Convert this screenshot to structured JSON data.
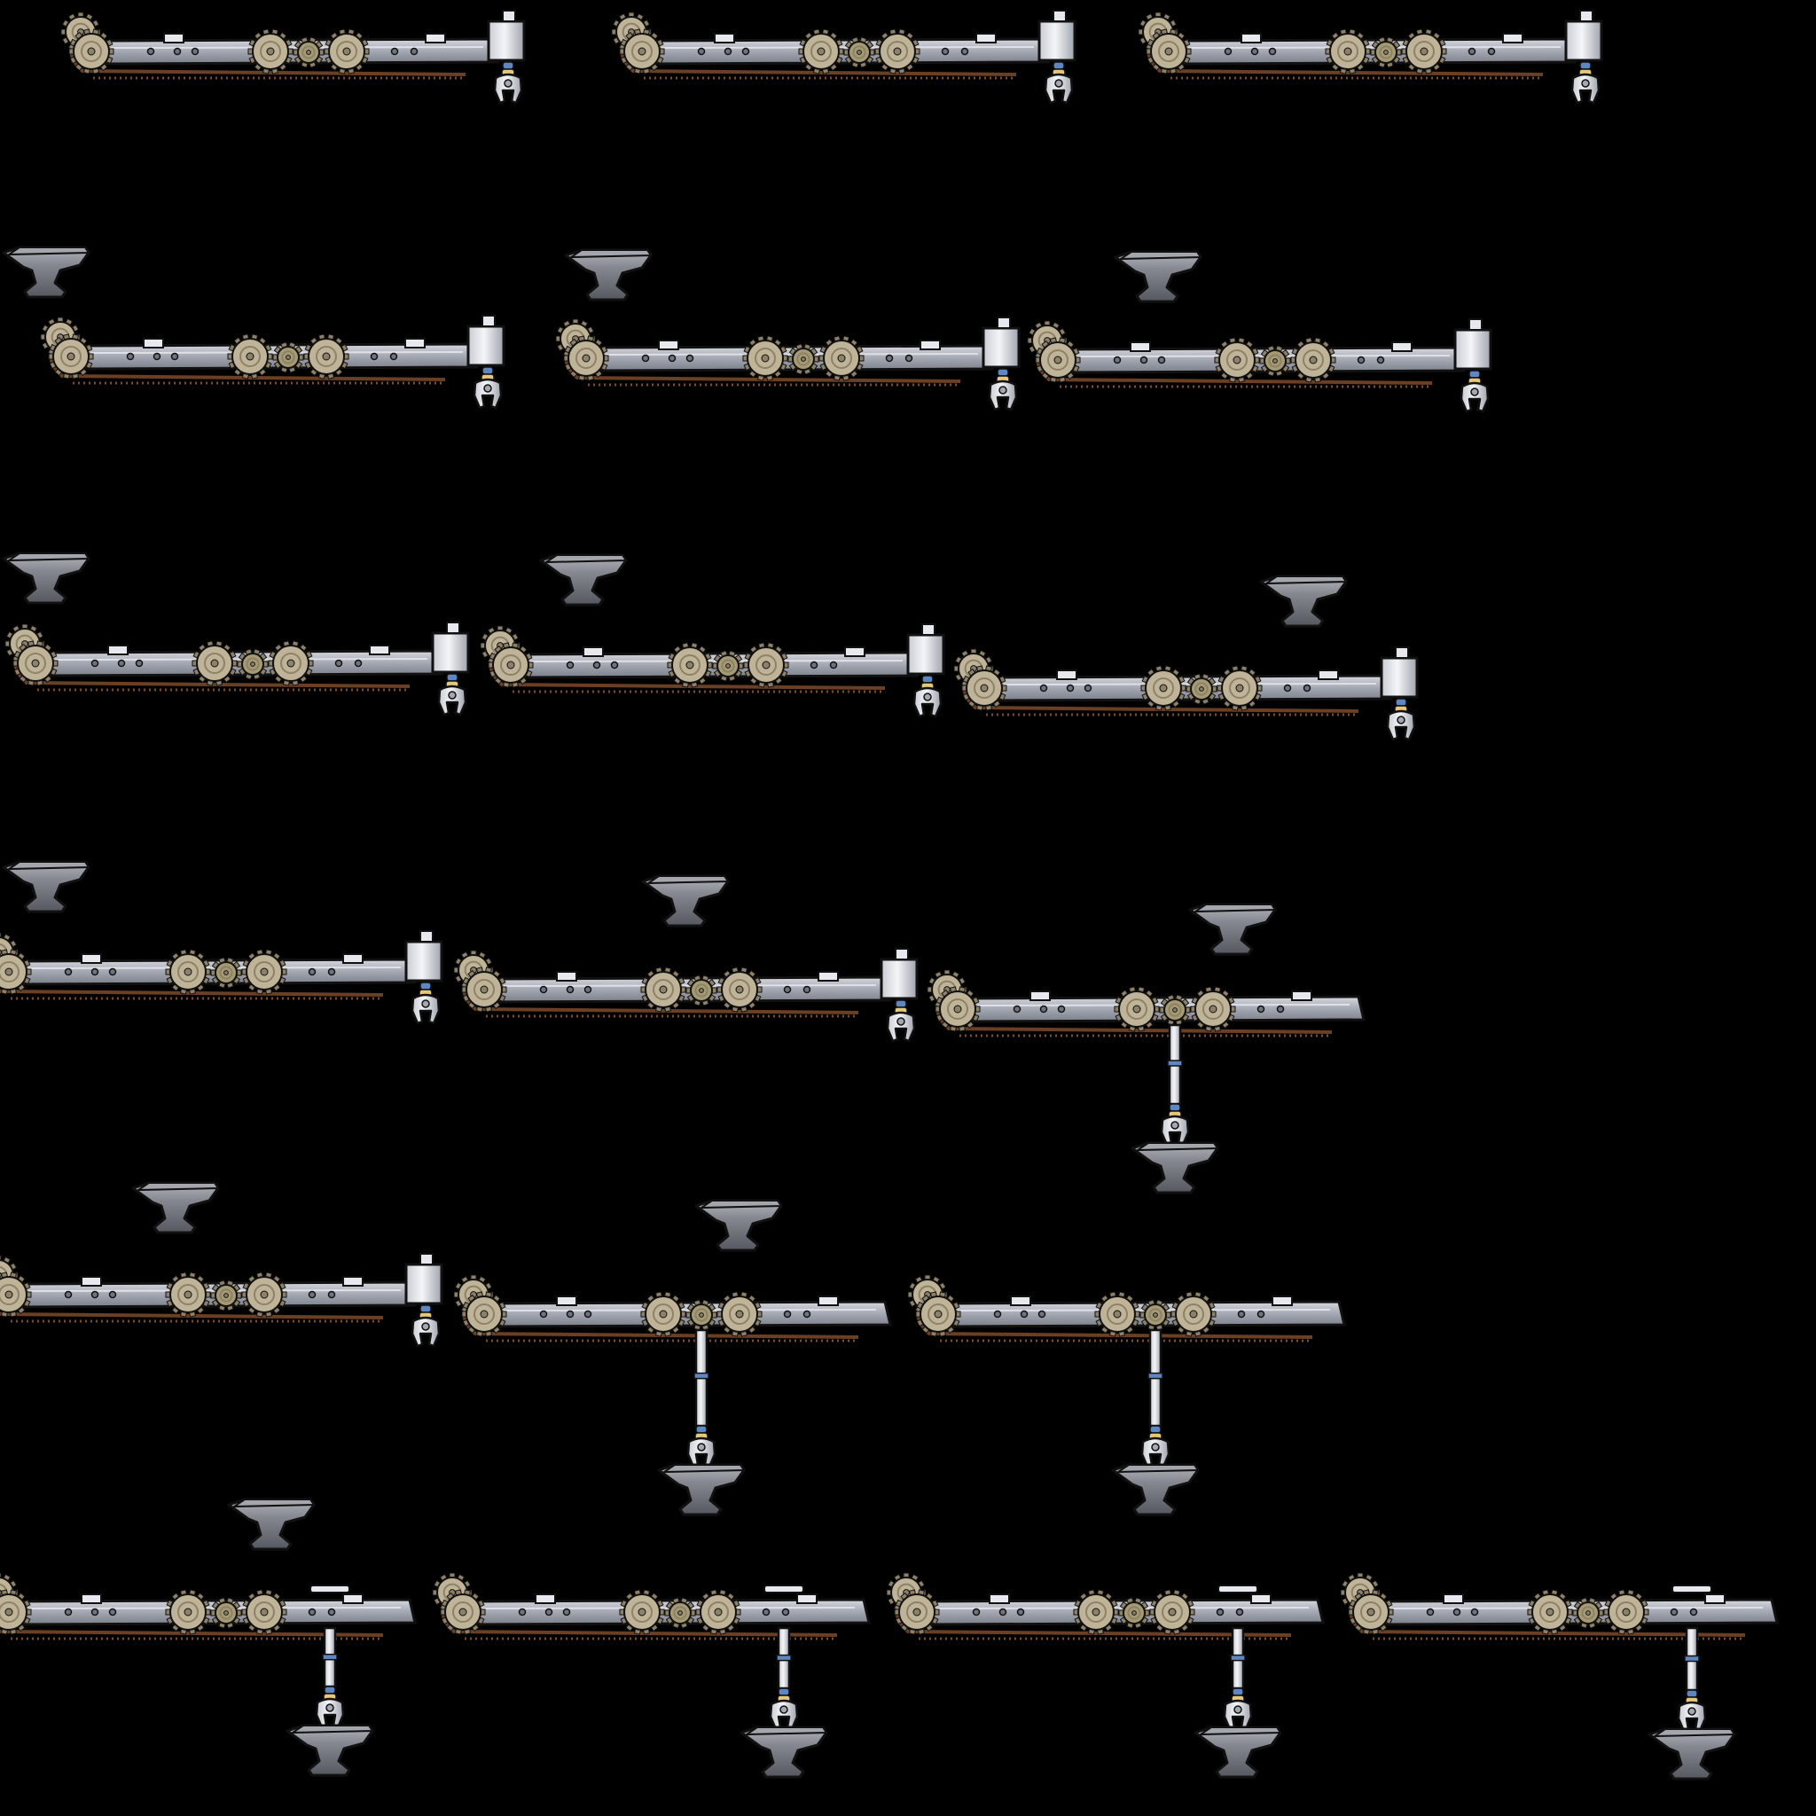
{
  "sheet": {
    "name": "crane-arm-anvil-sprite-sheet",
    "background": "#000000",
    "frame_count": 19,
    "rows": 6
  },
  "colors": {
    "outline": "#111111",
    "rail_light": "#b9bcc6",
    "rail_mid": "#9ea2ad",
    "rail_dark": "#6f7380",
    "gear_tan": "#bfb398",
    "gear_dark": "#8e8169",
    "gear_small": "#a59b73",
    "belt": "#6a3f24",
    "belt_dots": "#7a4a2c",
    "steel": "#e7e9ee",
    "steel_shadow": "#a4a8b2",
    "brass": "#e5c777",
    "blue_band": "#5d86c2",
    "anvil": "#7d8088",
    "anvil_top": "#a3a6ad",
    "anvil_dark": "#4c4f56"
  },
  "frames": [
    {
      "id": "f01",
      "row": 1,
      "col": 1,
      "arm_length": "full",
      "claw_state": "raised",
      "carrying": false,
      "anvil_visible": false
    },
    {
      "id": "f02",
      "row": 1,
      "col": 2,
      "arm_length": "full",
      "claw_state": "raised",
      "carrying": false,
      "anvil_visible": false
    },
    {
      "id": "f03",
      "row": 1,
      "col": 3,
      "arm_length": "full",
      "claw_state": "raised",
      "carrying": false,
      "anvil_visible": false
    },
    {
      "id": "f04",
      "row": 2,
      "col": 1,
      "arm_length": "full",
      "claw_state": "raised",
      "carrying": false,
      "anvil_visible": true
    },
    {
      "id": "f05",
      "row": 2,
      "col": 2,
      "arm_length": "full",
      "claw_state": "raised",
      "carrying": false,
      "anvil_visible": true
    },
    {
      "id": "f06",
      "row": 2,
      "col": 3,
      "arm_length": "full",
      "claw_state": "raised",
      "carrying": false,
      "anvil_visible": true
    },
    {
      "id": "f07",
      "row": 3,
      "col": 1,
      "arm_length": "full",
      "claw_state": "raised",
      "carrying": false,
      "anvil_visible": true
    },
    {
      "id": "f08",
      "row": 3,
      "col": 2,
      "arm_length": "full",
      "claw_state": "raised",
      "carrying": false,
      "anvil_visible": true
    },
    {
      "id": "f09",
      "row": 3,
      "col": 3,
      "arm_length": "full",
      "claw_state": "raised",
      "carrying": false,
      "anvil_visible": true
    },
    {
      "id": "f10",
      "row": 4,
      "col": 1,
      "arm_length": "full",
      "claw_state": "raised",
      "carrying": false,
      "anvil_visible": true
    },
    {
      "id": "f11",
      "row": 4,
      "col": 2,
      "arm_length": "full",
      "claw_state": "raised",
      "carrying": false,
      "anvil_visible": true
    },
    {
      "id": "f12",
      "row": 4,
      "col": 3,
      "arm_length": "full",
      "claw_state": "extended",
      "carrying": true,
      "anvil_visible": true
    },
    {
      "id": "f13",
      "row": 5,
      "col": 1,
      "arm_length": "full",
      "claw_state": "raised",
      "carrying": false,
      "anvil_visible": true
    },
    {
      "id": "f14",
      "row": 5,
      "col": 2,
      "arm_length": "full",
      "claw_state": "extended",
      "carrying": true,
      "anvil_visible": true
    },
    {
      "id": "f15",
      "row": 5,
      "col": 3,
      "arm_length": "full",
      "claw_state": "extended",
      "carrying": true,
      "anvil_visible": true
    },
    {
      "id": "f16",
      "row": 6,
      "col": 1,
      "arm_length": "full",
      "claw_state": "extended",
      "carrying": true,
      "anvil_visible": true
    },
    {
      "id": "f17",
      "row": 6,
      "col": 2,
      "arm_length": "full",
      "claw_state": "extended",
      "carrying": true,
      "anvil_visible": false
    },
    {
      "id": "f18",
      "row": 6,
      "col": 3,
      "arm_length": "full",
      "claw_state": "extended",
      "carrying": true,
      "anvil_visible": false
    },
    {
      "id": "f19",
      "row": 6,
      "col": 4,
      "arm_length": "full",
      "claw_state": "extended",
      "carrying": true,
      "anvil_visible": false
    }
  ]
}
